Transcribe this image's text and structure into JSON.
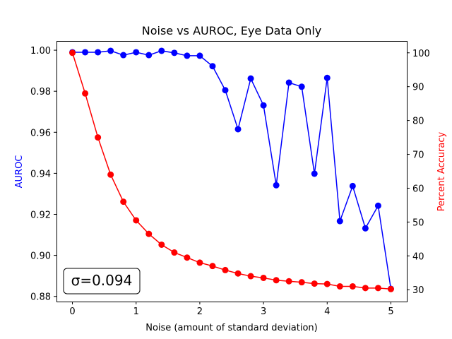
{
  "chart_data": {
    "type": "line",
    "title": "Noise vs AUROC, Eye Data Only",
    "xlabel": "Noise (amount of standard deviation)",
    "ylabel_left": "AUROC",
    "ylabel_right": "Percent Accuracy",
    "xlim": [
      -0.25,
      5.25
    ],
    "ylim_left": [
      0.8775,
      1.0045
    ],
    "ylim_right": [
      26.5,
      103.5
    ],
    "x_ticks": [
      0,
      1,
      2,
      3,
      4,
      5
    ],
    "y_ticks_left": [
      0.88,
      0.9,
      0.92,
      0.94,
      0.96,
      0.98,
      1.0
    ],
    "y_ticks_right": [
      30,
      40,
      50,
      60,
      70,
      80,
      90,
      100
    ],
    "x_tick_labels": [
      "0",
      "1",
      "2",
      "3",
      "4",
      "5"
    ],
    "y_tick_labels_left": [
      "0.88",
      "0.90",
      "0.92",
      "0.94",
      "0.96",
      "0.98",
      "1.00"
    ],
    "y_tick_labels_right": [
      "30",
      "40",
      "50",
      "60",
      "70",
      "80",
      "90",
      "100"
    ],
    "grid": false,
    "annotation": "σ=0.094",
    "x": [
      0.0,
      0.2,
      0.4,
      0.6,
      0.8,
      1.0,
      1.2,
      1.4,
      1.6,
      1.8,
      2.0,
      2.2,
      2.4,
      2.6,
      2.8,
      3.0,
      3.2,
      3.4,
      3.6,
      3.8,
      4.0,
      4.2,
      4.4,
      4.6,
      4.8,
      5.0
    ],
    "series": [
      {
        "axis": "left",
        "color": "#0000ff",
        "values": [
          0.999,
          0.999,
          0.999,
          0.9997,
          0.9976,
          0.999,
          0.9976,
          0.9997,
          0.9987,
          0.9973,
          0.9973,
          0.9922,
          0.9805,
          0.9615,
          0.9862,
          0.9731,
          0.9342,
          0.9842,
          0.9822,
          0.9398,
          0.9865,
          0.9167,
          0.9338,
          0.9132,
          0.9242,
          0.8837
        ]
      },
      {
        "axis": "right",
        "color": "#ff0000",
        "values": [
          100.0,
          88.0,
          75.0,
          64.0,
          56.0,
          50.5,
          46.5,
          43.3,
          41.0,
          39.5,
          38.0,
          37.0,
          35.8,
          34.8,
          34.0,
          33.5,
          32.8,
          32.5,
          32.2,
          31.8,
          31.7,
          31.0,
          31.0,
          30.5,
          30.5,
          30.2
        ]
      }
    ]
  }
}
